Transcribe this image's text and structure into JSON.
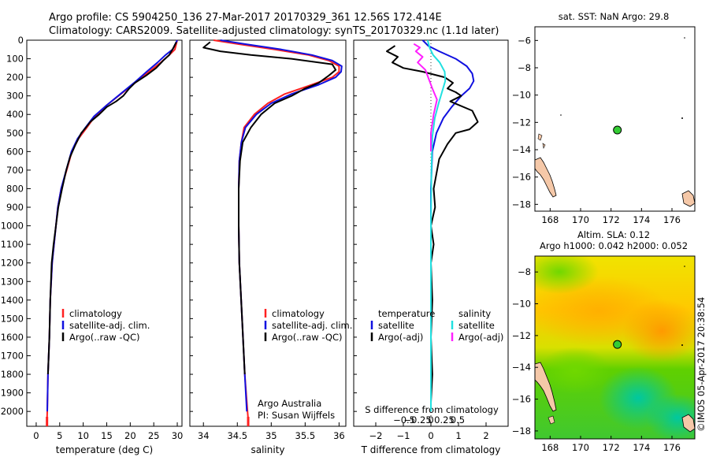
{
  "header": {
    "line1": "Argo profile: CS 5904250_136 27-Mar-2017 20170329_361 12.56S 172.414E",
    "line2": "Climatology: CARS2009. Satellite-adjusted climatology: synTS_20170329.nc (1.1d later)"
  },
  "colors": {
    "climatology": "#ff2020",
    "satellite": "#1010e0",
    "argo": "#000000",
    "salinity_satellite": "#20e0e0",
    "salinity_argo": "#ff20ff",
    "marker": "#33cc33"
  },
  "chart_data": [
    {
      "id": "temperature",
      "type": "line",
      "xlabel": "temperature (deg C)",
      "ylabel": "",
      "xlim": [
        -2,
        31
      ],
      "ylim": [
        2080,
        0
      ],
      "xticks": [
        0,
        5,
        10,
        15,
        20,
        25,
        30
      ],
      "yticks": [
        0,
        100,
        200,
        300,
        400,
        500,
        600,
        700,
        800,
        900,
        1000,
        1100,
        1200,
        1300,
        1400,
        1500,
        1600,
        1700,
        1800,
        1900,
        2000
      ],
      "legend": [
        "climatology",
        "satellite-adj. clim.",
        "Argo(..raw -QC)"
      ],
      "series": [
        {
          "name": "climatology",
          "color": "#ff2020",
          "x": [
            30,
            29.8,
            29.5,
            28.3,
            26.5,
            24.0,
            21.0,
            18.0,
            15.0,
            12.5,
            10.8,
            9.0,
            7.6,
            6.5,
            5.3,
            4.6,
            4.2,
            3.8,
            3.4,
            3.0,
            2.8,
            2.5,
            2.35,
            2.3
          ],
          "y": [
            0,
            20,
            50,
            80,
            120,
            170,
            230,
            290,
            350,
            410,
            470,
            530,
            600,
            700,
            800,
            900,
            1000,
            1100,
            1200,
            1400,
            1600,
            1800,
            2000,
            2040
          ]
        },
        {
          "name": "satellite-adj. clim.",
          "color": "#1010e0",
          "x": [
            30,
            29.6,
            29.0,
            27.5,
            25.8,
            23.5,
            20.8,
            17.9,
            15.0,
            12.3,
            10.5,
            8.8,
            7.5,
            6.4,
            5.3,
            4.6,
            4.2,
            3.8,
            3.4,
            3.0,
            2.8,
            2.5,
            2.35
          ],
          "y": [
            0,
            20,
            50,
            80,
            120,
            170,
            230,
            290,
            350,
            410,
            470,
            530,
            600,
            700,
            800,
            900,
            1000,
            1100,
            1200,
            1400,
            1600,
            1800,
            2000
          ]
        },
        {
          "name": "Argo(..raw -QC)",
          "color": "#000000",
          "x": [
            29.8,
            29.2,
            28.3,
            27.0,
            25.5,
            23.4,
            21.0,
            19.8,
            18.5,
            17.0,
            15.0,
            13.4,
            11.5,
            10.6,
            9.6,
            8.4,
            7.2,
            6.4,
            5.5,
            4.7,
            4.2,
            3.7,
            3.3,
            3.0,
            2.8,
            2.5
          ],
          "y": [
            10,
            40,
            80,
            110,
            150,
            190,
            230,
            260,
            300,
            330,
            360,
            400,
            440,
            470,
            500,
            560,
            630,
            700,
            800,
            900,
            1000,
            1100,
            1200,
            1400,
            1600,
            1800
          ]
        }
      ]
    },
    {
      "id": "salinity",
      "type": "line",
      "xlabel": "salinity",
      "ylabel": "",
      "xlim": [
        33.8,
        36.1
      ],
      "ylim": [
        2080,
        0
      ],
      "xticks": [
        34,
        34.5,
        35,
        35.5,
        36
      ],
      "legend": [
        "climatology",
        "satellite-adj. clim.",
        "Argo(..raw -QC)"
      ],
      "annotation": [
        "Argo Australia",
        "PI: Susan Wijffels"
      ],
      "series": [
        {
          "name": "climatology",
          "color": "#ff2020",
          "x": [
            34.15,
            34.5,
            35.05,
            35.55,
            35.85,
            36.0,
            36.0,
            35.9,
            35.6,
            35.2,
            34.95,
            34.75,
            34.6,
            34.56,
            34.53,
            34.52,
            34.52,
            34.53,
            34.57,
            34.61,
            34.65,
            34.66
          ],
          "y": [
            0,
            20,
            50,
            80,
            110,
            140,
            170,
            200,
            240,
            290,
            340,
            400,
            470,
            550,
            650,
            800,
            1000,
            1200,
            1500,
            1800,
            2000,
            2040
          ]
        },
        {
          "name": "satellite-adj. clim.",
          "color": "#1010e0",
          "x": [
            34.25,
            34.6,
            35.15,
            35.6,
            35.9,
            36.04,
            36.03,
            35.95,
            35.7,
            35.3,
            35.0,
            34.78,
            34.62,
            34.56,
            34.53,
            34.52,
            34.52,
            34.53,
            34.57,
            34.61,
            34.64
          ],
          "y": [
            0,
            20,
            50,
            80,
            110,
            140,
            170,
            200,
            240,
            290,
            340,
            400,
            470,
            550,
            650,
            800,
            1000,
            1200,
            1500,
            1800,
            2000
          ]
        },
        {
          "name": "Argo(..raw -QC)",
          "color": "#000000",
          "x": [
            34.1,
            34.0,
            34.25,
            34.7,
            35.3,
            35.9,
            35.95,
            35.85,
            35.7,
            35.5,
            35.3,
            35.05,
            34.85,
            34.7,
            34.58,
            34.54,
            34.52,
            34.52,
            34.53,
            34.57,
            34.61
          ],
          "y": [
            10,
            40,
            60,
            80,
            100,
            130,
            160,
            190,
            230,
            260,
            300,
            340,
            400,
            470,
            550,
            650,
            800,
            1000,
            1200,
            1500,
            1800
          ]
        }
      ]
    },
    {
      "id": "difference",
      "type": "line",
      "xlabel": "T difference from climatology",
      "xlabel_top": "S difference from climatology",
      "xlim": [
        -2.8,
        2.8
      ],
      "ylim": [
        2080,
        0
      ],
      "xticks": [
        -2,
        -1,
        0,
        1,
        2
      ],
      "xticks_top": [
        -0.5,
        -0.25,
        0,
        0.25,
        0.5
      ],
      "legend_left": {
        "title": "temperature",
        "items": [
          "satellite",
          "Argo(-adj)"
        ]
      },
      "legend_right": {
        "title": "salinity",
        "items": [
          "satellite",
          "Argo(-adj)"
        ]
      },
      "series": [
        {
          "name": "temperature satellite",
          "color": "#1010e0",
          "x": [
            -0.3,
            -0.1,
            0.3,
            0.9,
            1.3,
            1.5,
            1.55,
            1.4,
            1.1,
            0.75,
            0.45,
            0.2,
            0.05,
            0.0,
            0.0,
            0.0,
            0.0
          ],
          "y": [
            0,
            30,
            60,
            100,
            140,
            180,
            220,
            260,
            300,
            360,
            420,
            500,
            600,
            800,
            1200,
            1600,
            2000
          ]
        },
        {
          "name": "temperature Argo(-adj)",
          "color": "#000000",
          "x": [
            -1.3,
            -1.6,
            -1.2,
            -1.4,
            -1.0,
            -0.3,
            0.5,
            0.8,
            0.6,
            0.9,
            1.1,
            0.7,
            1.5,
            1.7,
            1.4,
            0.9,
            0.6,
            0.3,
            0.2,
            0.1,
            0.15,
            0.0,
            0.1,
            0.0,
            0.05,
            0.0,
            0.05,
            0.0
          ],
          "y": [
            30,
            60,
            90,
            120,
            150,
            170,
            200,
            230,
            260,
            280,
            300,
            330,
            380,
            440,
            480,
            500,
            560,
            640,
            720,
            800,
            900,
            1000,
            1100,
            1200,
            1400,
            1600,
            1800,
            1950
          ]
        },
        {
          "name": "salinity satellite",
          "color": "#20e0e0",
          "x": [
            -0.12,
            -0.05,
            0.08,
            0.32,
            0.5,
            0.52,
            0.4,
            0.28,
            0.14,
            0.05,
            0.02,
            0.0,
            0.0,
            0.0
          ],
          "y": [
            0,
            40,
            80,
            120,
            170,
            220,
            280,
            340,
            420,
            520,
            700,
            1000,
            1500,
            2000
          ]
        },
        {
          "name": "salinity Argo(-adj)",
          "color": "#ff20ff",
          "x": [
            -0.62,
            -0.4,
            -0.55,
            -0.3,
            -0.48,
            -0.2,
            -0.1,
            0.05,
            0.22,
            0.1,
            0.0,
            0.0
          ],
          "y": [
            20,
            40,
            60,
            90,
            120,
            160,
            200,
            260,
            320,
            400,
            500,
            600
          ]
        }
      ]
    },
    {
      "id": "sst_map",
      "type": "scatter",
      "title": "sat. SST: NaN Argo: 29.8",
      "xlim": [
        167,
        177.5
      ],
      "ylim": [
        -18.5,
        -5
      ],
      "xticks": [
        168,
        170,
        172,
        174,
        176
      ],
      "yticks": [
        -6,
        -8,
        -10,
        -12,
        -14,
        -16,
        -18
      ],
      "points": [
        {
          "x": 172.414,
          "y": -12.56
        }
      ]
    },
    {
      "id": "sla_map",
      "type": "heatmap",
      "title_line1": "Altim. SLA: 0.12",
      "title_line2": "Argo h1000: 0.042 h2000: 0.052",
      "xlim": [
        167,
        177.5
      ],
      "ylim": [
        -18.5,
        -7
      ],
      "xticks": [
        168,
        170,
        172,
        174,
        176
      ],
      "yticks": [
        -8,
        -10,
        -12,
        -14,
        -16,
        -18
      ],
      "points": [
        {
          "x": 172.414,
          "y": -12.56
        }
      ]
    }
  ],
  "side_text": "©IMOS 05-Apr-2017 20:38:54"
}
